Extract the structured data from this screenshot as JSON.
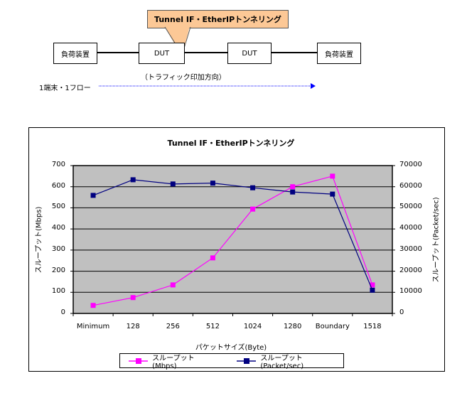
{
  "diagram": {
    "callout_label": "Tunnel IF・EtherIPトンネリング",
    "nodes": [
      {
        "label": "負荷装置"
      },
      {
        "label": "DUT"
      },
      {
        "label": "DUT"
      },
      {
        "label": "負荷装置"
      }
    ],
    "flow_label": "1端末・1フロー",
    "direction_label": "（トラフィック印加方向）",
    "arrow_color": "#0000ff"
  },
  "chart_data": {
    "type": "line",
    "title": "Tunnel IF・EtherIPトンネリング",
    "xlabel": "パケットサイズ(Byte)",
    "ylabel": "スループット(Mbps)",
    "y2label": "スループット(Packet/sec)",
    "categories": [
      "Minimum",
      "128",
      "256",
      "512",
      "1024",
      "1280",
      "Boundary",
      "1518"
    ],
    "ylim": [
      0,
      700
    ],
    "y2lim": [
      0,
      70000
    ],
    "yticks": [
      "0",
      "100",
      "200",
      "300",
      "400",
      "500",
      "600",
      "700"
    ],
    "y2ticks": [
      "0",
      "10000",
      "20000",
      "30000",
      "40000",
      "50000",
      "60000",
      "70000"
    ],
    "grid": true,
    "plot_background": "#c0c0c0",
    "legend_position": "bottom",
    "series": [
      {
        "name": "スループット(Mbps)",
        "axis": "left",
        "color": "#ff00ff",
        "values": [
          38,
          75,
          135,
          263,
          494,
          600,
          650,
          135
        ]
      },
      {
        "name": "スループット(Packet/sec)",
        "axis": "right",
        "color": "#000080",
        "values": [
          55900,
          63300,
          61300,
          61700,
          59500,
          57500,
          56500,
          11000
        ]
      }
    ]
  }
}
